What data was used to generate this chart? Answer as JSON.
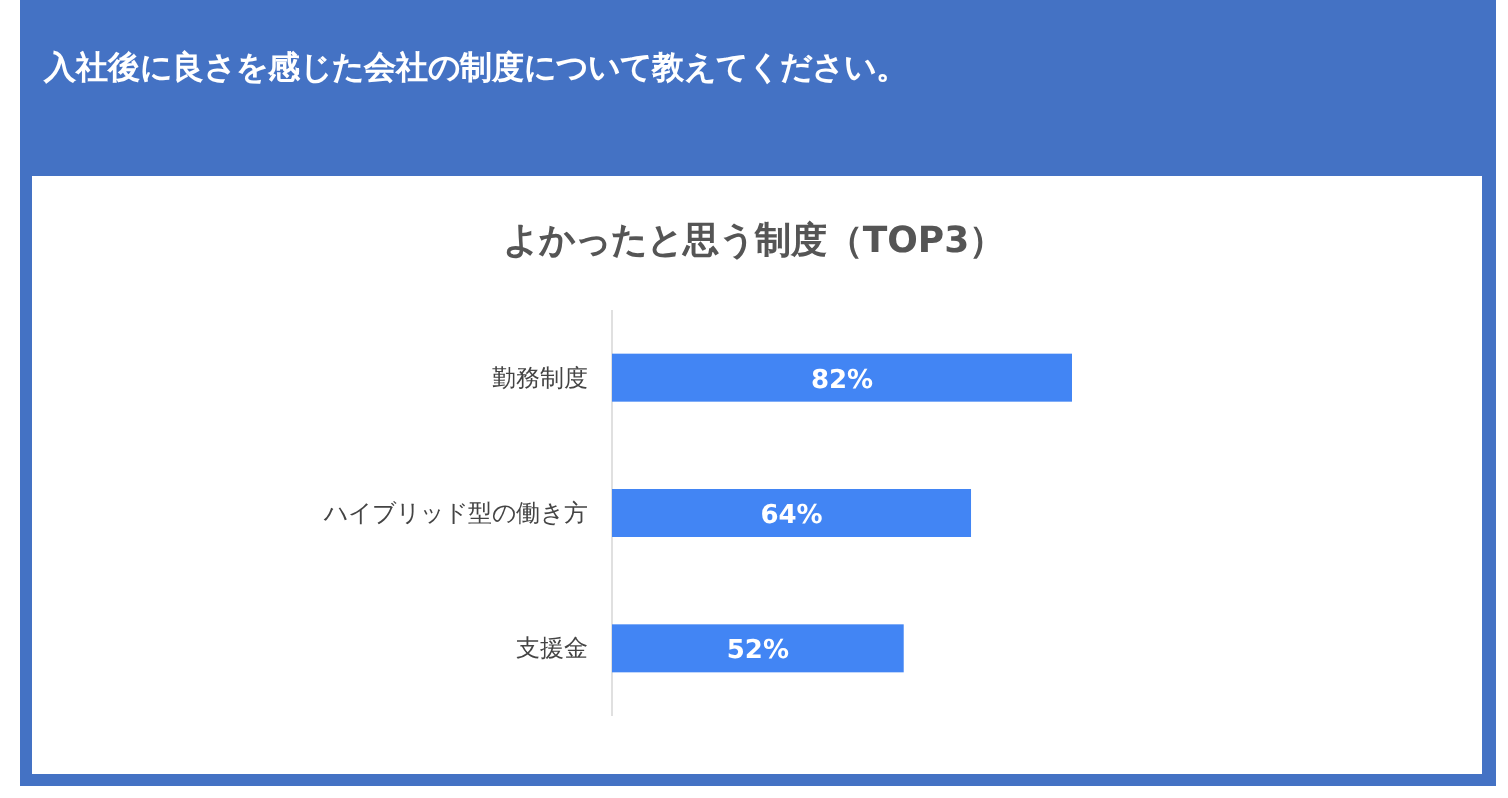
{
  "chart_data": {
    "type": "bar",
    "orientation": "horizontal",
    "title": "入社後に良さを感じた会社の制度について教えてください。",
    "subtitle": "よかったと思う制度（TOP3）",
    "categories": [
      "勤務制度",
      "ハイブリッド型の働き方",
      "支援金"
    ],
    "values": [
      82,
      64,
      52
    ],
    "value_labels": [
      "82%",
      "64%",
      "52%"
    ],
    "color": "#4285f4"
  }
}
